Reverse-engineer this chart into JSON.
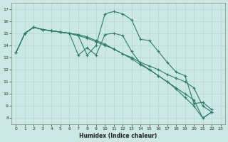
{
  "xlabel": "Humidex (Indice chaleur)",
  "bg_color": "#cbe8e4",
  "grid_color": "#b0d8d4",
  "line_color": "#2e7a6e",
  "xlim": [
    -0.5,
    23.5
  ],
  "ylim": [
    7.5,
    17.5
  ],
  "xticks": [
    0,
    1,
    2,
    3,
    4,
    5,
    6,
    7,
    8,
    9,
    10,
    11,
    12,
    13,
    14,
    15,
    16,
    17,
    18,
    19,
    20,
    21,
    22,
    23
  ],
  "yticks": [
    8,
    9,
    10,
    11,
    12,
    13,
    14,
    15,
    16,
    17
  ],
  "s1_x": [
    0,
    1,
    2,
    3,
    4,
    5,
    6,
    7,
    8,
    9,
    10,
    11,
    12,
    13,
    14,
    15,
    16,
    17,
    18,
    19,
    20,
    21,
    22
  ],
  "s1_y": [
    13.4,
    15.0,
    15.5,
    15.3,
    15.2,
    15.1,
    15.0,
    14.8,
    13.2,
    14.0,
    16.6,
    16.8,
    16.6,
    16.1,
    14.5,
    14.4,
    13.5,
    12.6,
    11.8,
    11.5,
    9.2,
    9.3,
    8.7
  ],
  "s2_x": [
    0,
    1,
    2,
    3,
    4,
    5,
    6,
    7,
    8,
    9,
    10,
    11,
    12,
    13,
    14,
    15,
    16,
    17,
    18,
    19,
    20,
    21,
    22
  ],
  "s2_y": [
    13.4,
    15.0,
    15.5,
    15.3,
    15.2,
    15.1,
    15.0,
    13.2,
    13.8,
    13.2,
    14.9,
    15.0,
    14.8,
    13.5,
    12.5,
    12.0,
    11.5,
    11.0,
    10.5,
    10.0,
    9.5,
    8.0,
    8.5
  ],
  "s3_x": [
    0,
    1,
    2,
    3,
    4,
    5,
    6,
    7,
    8,
    9,
    10,
    11,
    12,
    13,
    14,
    15,
    16,
    17,
    18,
    19,
    20,
    21,
    22
  ],
  "s3_y": [
    13.4,
    15.0,
    15.5,
    15.3,
    15.2,
    15.1,
    15.0,
    14.8,
    14.6,
    14.3,
    14.0,
    13.7,
    13.3,
    13.0,
    12.6,
    12.3,
    12.0,
    11.6,
    11.3,
    11.0,
    10.5,
    9.0,
    8.5
  ],
  "s4_x": [
    1,
    2,
    3,
    4,
    5,
    6,
    7,
    8,
    9,
    10,
    11,
    12,
    13,
    14,
    15,
    16,
    17,
    18,
    19,
    20,
    21,
    22
  ],
  "s4_y": [
    15.0,
    15.5,
    15.3,
    15.2,
    15.1,
    15.0,
    14.9,
    14.7,
    14.4,
    14.1,
    13.7,
    13.3,
    12.9,
    12.4,
    12.0,
    11.5,
    11.0,
    10.4,
    9.7,
    9.0,
    8.0,
    8.5
  ]
}
